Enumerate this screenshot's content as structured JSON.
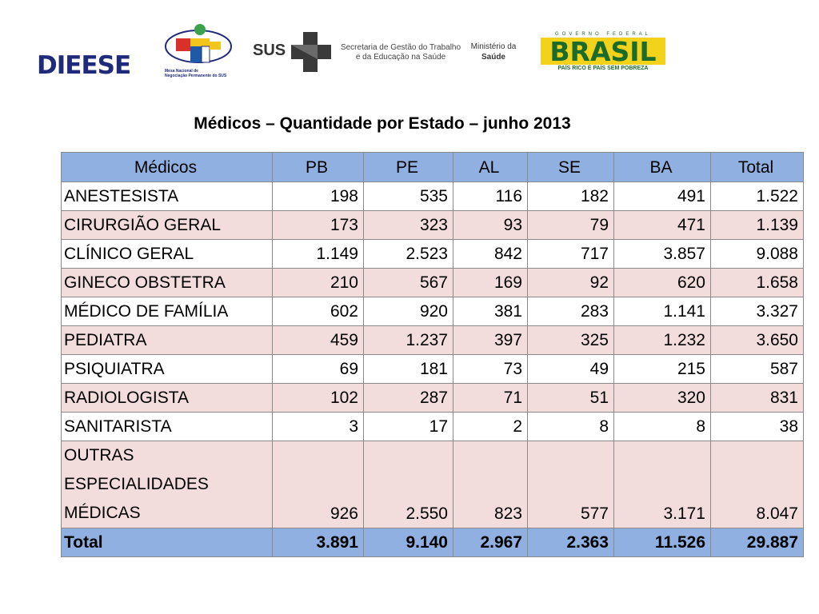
{
  "logos": {
    "dieese_text": "DIEESE",
    "mesa_caption_1": "Mesa Nacional de",
    "mesa_caption_2": "Negociação Permanente do SUS",
    "sus_text": "SUS",
    "sgtes_line1": "Secretaria de Gestão do Trabalho",
    "sgtes_line2": "e da Educação na Saúde",
    "ms_line1": "Ministério da",
    "ms_line2": "Saúde",
    "gov_federal": "GOVERNO FEDERAL",
    "brasil": "BRASIL",
    "brasil_slogan": "PAÍS RICO É PAÍS SEM POBREZA"
  },
  "title": "Médicos – Quantidade por Estado – junho 2013",
  "table": {
    "headers": [
      "Médicos",
      "PB",
      "PE",
      "AL",
      "SE",
      "BA",
      "Total"
    ],
    "rows": [
      [
        "ANESTESISTA",
        "198",
        "535",
        "116",
        "182",
        "491",
        "1.522"
      ],
      [
        "CIRURGIÃO GERAL",
        "173",
        "323",
        "93",
        "79",
        "471",
        "1.139"
      ],
      [
        "CLÍNICO GERAL",
        "1.149",
        "2.523",
        "842",
        "717",
        "3.857",
        "9.088"
      ],
      [
        "GINECO OBSTETRA",
        "210",
        "567",
        "169",
        "92",
        "620",
        "1.658"
      ],
      [
        "MÉDICO DE FAMÍLIA",
        "602",
        "920",
        "381",
        "283",
        "1.141",
        "3.327"
      ],
      [
        "PEDIATRA",
        "459",
        "1.237",
        "397",
        "325",
        "1.232",
        "3.650"
      ],
      [
        "PSIQUIATRA",
        "69",
        "181",
        "73",
        "49",
        "215",
        "587"
      ],
      [
        "RADIOLOGISTA",
        "102",
        "287",
        "71",
        "51",
        "320",
        "831"
      ],
      [
        "SANITARISTA",
        "3",
        "17",
        "2",
        "8",
        "8",
        "38"
      ],
      [
        "OUTRAS ESPECIALIDADES MÉDICAS",
        "926",
        "2.550",
        "823",
        "577",
        "3.171",
        "8.047"
      ]
    ],
    "total": [
      "Total",
      "3.891",
      "9.140",
      "2.967",
      "2.363",
      "11.526",
      "29.887"
    ]
  },
  "colors": {
    "header_bg": "#8fb0e0",
    "alt_row_bg": "#f2dcdc",
    "dieese_blue": "#1f2a7a",
    "brasil_green": "#1b6b2a",
    "brasil_yellow": "#f2d21b"
  }
}
